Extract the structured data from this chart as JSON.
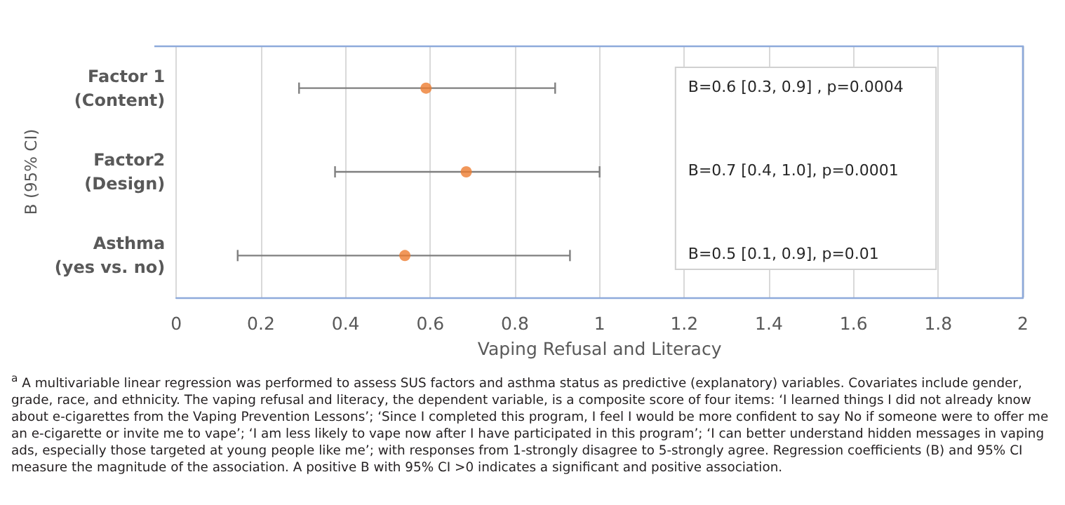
{
  "chart_data": {
    "type": "scatter",
    "orientation": "horizontal",
    "xlabel": "Vaping Refusal and Literacy",
    "ylabel": "B (95% CI)",
    "categories": [
      "Factor 1 (Content)",
      "Factor2 (Design)",
      "Asthma (yes vs. no)"
    ],
    "values": [
      0.59,
      0.685,
      0.54
    ],
    "errors": [
      [
        0.29,
        0.895
      ],
      [
        0.375,
        1.0
      ],
      [
        0.145,
        0.93
      ]
    ],
    "color": "#ed7d31",
    "marker": "circle",
    "grid": "x",
    "xlim": [
      0,
      2
    ],
    "xticks": [
      0,
      0.2,
      0.4,
      0.6,
      0.8,
      1,
      1.2,
      1.4,
      1.6,
      1.8,
      2
    ],
    "annotations": [
      "B=0.6 [0.3, 0.9] , p=0.0004",
      "B=0.7 [0.4, 1.0], p=0.0001",
      "B=0.5 [0.1, 0.9], p=0.01",
      "$^{a}$ A multivariable linear regression was performed to assess SUS factors and asthma status as predictive (explanatory) variables. Covariates include gender, grade, race, and ethnicity.  The vaping refusal and literacy, the dependent variable, is a composite score of four items: ‘I learned things I did not already know about e-cigarettes from the Vaping Prevention Lessons’; ‘Since I completed this program, I feel I would be more confident to say No if someone were to offer me an e-cigarette or invite me to vape’; ‘I am less likely to vape now after I have participated in this program’; ‘I can better understand hidden messages in vaping ads, especially those targeted at young people like me’; with responses from 1-strongly disagree to 5-strongly agree. Regression coefficients (B) and 95% CI measure the magnitude of the association. A positive B with 95% CI  >0 indicates a significant and positive association."
    ]
  }
}
